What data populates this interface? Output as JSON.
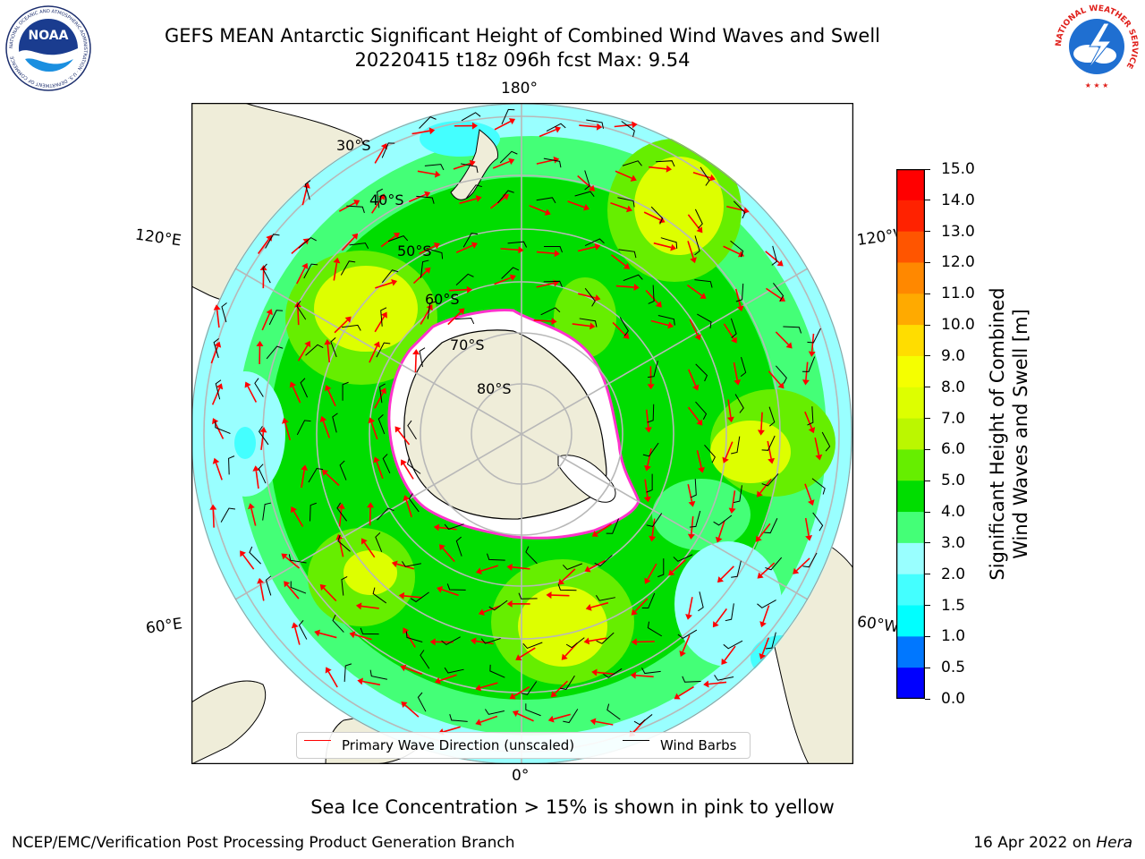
{
  "title": {
    "line1": "GEFS MEAN Antarctic Significant Height of Combined Wind Waves and Swell",
    "line2": "20220415 t18z 096h fcst   Max: 9.54"
  },
  "logos": {
    "noaa": {
      "text": "NOAA",
      "ring_text": "NATIONAL OCEANIC AND ATMOSPHERIC ADMINISTRATION · U.S. DEPARTMENT OF COMMERCE"
    },
    "nws": {
      "ring_text": "NATIONAL WEATHER SERVICE"
    }
  },
  "map": {
    "projection": "south-polar-stereographic",
    "lon_labels": {
      "top": "180°",
      "bottom": "0°",
      "upper_left": "120°E",
      "upper_right": "120°W",
      "lower_left": "60°E",
      "lower_right": "60°W"
    },
    "lat_labels": [
      "30°S",
      "40°S",
      "50°S",
      "60°S",
      "70°S",
      "80°S"
    ],
    "colors": {
      "land": "#efedd9",
      "ice": "#ffffff",
      "ice_edge": "#ff33cc",
      "coast": "#000000",
      "grid": "#b8b8b8"
    }
  },
  "legend": {
    "wave_label": "Primary Wave Direction (unscaled)",
    "wave_color": "#ff0000",
    "barb_label": "Wind Barbs",
    "barb_color": "#000000"
  },
  "colorbar": {
    "label": "Significant Height of Combined\nWind Waves and Swell [m]",
    "levels": [
      {
        "value": "15.0"
      },
      {
        "value": "14.0",
        "color": "#ff0000"
      },
      {
        "value": "13.0",
        "color": "#ff2200"
      },
      {
        "value": "12.0",
        "color": "#ff5500"
      },
      {
        "value": "11.0",
        "color": "#ff8800"
      },
      {
        "value": "10.0",
        "color": "#ffaa00"
      },
      {
        "value": "9.0",
        "color": "#ffdd00"
      },
      {
        "value": "8.0",
        "color": "#f5ff00"
      },
      {
        "value": "7.0",
        "color": "#ddff00"
      },
      {
        "value": "6.0",
        "color": "#bbf700"
      },
      {
        "value": "5.0",
        "color": "#66ee00"
      },
      {
        "value": "4.0",
        "color": "#00dd00"
      },
      {
        "value": "3.0",
        "color": "#44ff77"
      },
      {
        "value": "2.0",
        "color": "#99ffff"
      },
      {
        "value": "1.5",
        "color": "#44ffff"
      },
      {
        "value": "1.0",
        "color": "#00ffff"
      },
      {
        "value": "0.5",
        "color": "#0077ff"
      },
      {
        "value": "0.0",
        "color": "#0000ff"
      }
    ]
  },
  "sea_ice_note": "Sea Ice Concentration > 15% is shown in pink to yellow",
  "footer": {
    "left": "NCEP/EMC/Verification Post Processing Product Generation Branch",
    "right_date": "16 Apr 2022 on ",
    "right_host": "Hera"
  }
}
